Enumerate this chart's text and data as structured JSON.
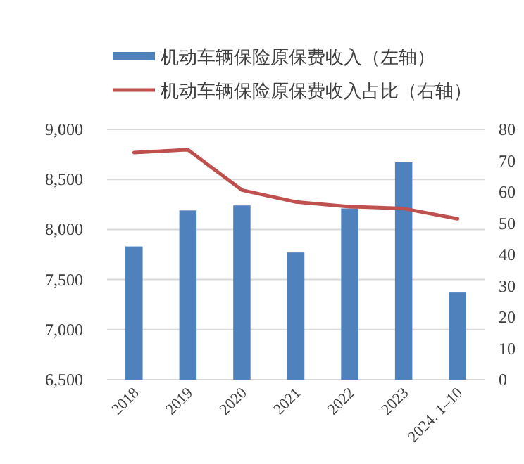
{
  "chart_data": {
    "type": "bar",
    "categories": [
      "2018",
      "2019",
      "2020",
      "2021",
      "2022",
      "2023",
      "2024. 1–10"
    ],
    "series": [
      {
        "name": "机动车辆保险原保费收入（左轴）",
        "color": "#4f81bd",
        "values": [
          7830,
          8190,
          8240,
          7770,
          8210,
          8670,
          7370
        ]
      },
      {
        "name": "机动车辆保险原保费收入占比（右轴）",
        "type": "line",
        "axis": "y2",
        "color": "#c0504d",
        "values": [
          72.6,
          73.5,
          60.6,
          56.8,
          55.3,
          54.7,
          51.4
        ]
      }
    ],
    "ylim": [
      6500,
      9000
    ],
    "yticks": [
      {
        "value": 6500,
        "label": "6,500"
      },
      {
        "value": 7000,
        "label": "7,000"
      },
      {
        "value": 7500,
        "label": "7,500"
      },
      {
        "value": 8000,
        "label": "8,000"
      },
      {
        "value": 8500,
        "label": "8,500"
      },
      {
        "value": 9000,
        "label": "9,000"
      }
    ],
    "y2lim": [
      0,
      80
    ],
    "y2ticks": [
      0,
      10,
      20,
      30,
      40,
      50,
      60,
      70,
      80
    ],
    "grid": "y",
    "legend": "top"
  }
}
